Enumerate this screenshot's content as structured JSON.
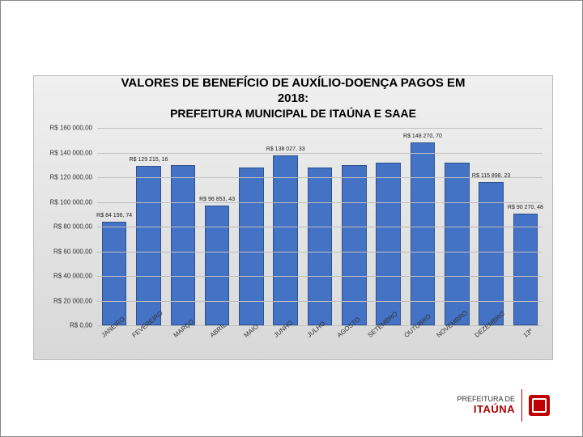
{
  "title_line1": "VALORES DE BENEFÍCIO DE AUXÍLIO-DOENÇA PAGOS EM",
  "title_line2": "2018:",
  "subtitle": "PREFEITURA MUNICIPAL DE ITAÚNA E SAAE",
  "chart": {
    "type": "bar",
    "ylim_max": 160000,
    "ylim_min": 0,
    "ytick_step": 20000,
    "ylabels": [
      "R$ 0,00",
      "R$ 20 000,00",
      "R$ 40 000,00",
      "R$ 60 000,00",
      "R$ 80 000,00",
      "R$ 100 000,00",
      "R$ 120 000,00",
      "R$ 140 000,00",
      "R$ 160 000,00"
    ],
    "categories": [
      "JANEIRO",
      "FEVEREIRO",
      "MARÇO",
      "ABRIL",
      "MAIO",
      "JUNHO",
      "JULHO",
      "AGOSTO",
      "SETEMBRO",
      "OUTUBRO",
      "NOVEMBRO",
      "DEZEMBRO",
      "13º"
    ],
    "values": [
      84196.74,
      129215.16,
      130000,
      96853.43,
      128000,
      138027.33,
      128000,
      130000,
      132000,
      148270.7,
      132000,
      115898.23,
      90270.48
    ],
    "value_labels": {
      "0": "R$ 84 196, 74",
      "1": "R$ 129 215, 16",
      "3": "R$ 96 853, 43",
      "5": "R$ 138 027, 33",
      "9": "R$ 148 270, 70",
      "11": "R$ 115 898, 23",
      "12": "R$ 90 270, 48"
    },
    "bar_color": "#4472c4",
    "bar_border": "#2f528f",
    "grid_color": "#bfbfbf",
    "background_gradient": [
      "#f0f0f0",
      "#d8d8d8"
    ],
    "bar_width": 0.72,
    "label_fontsize": 8
  },
  "footer": {
    "line1": "PREFEITURA DE",
    "line2": "ITAÚNA"
  }
}
